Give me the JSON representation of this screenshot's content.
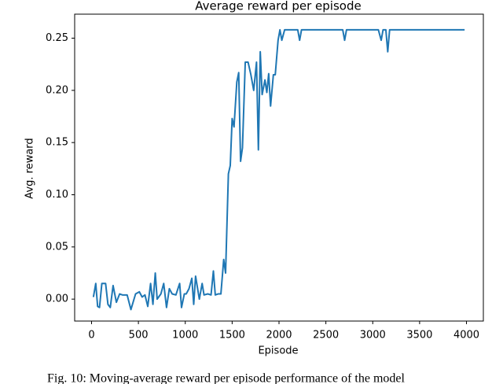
{
  "chart_data": {
    "type": "line",
    "title": "Average reward per episode",
    "xlabel": "Episode",
    "ylabel": "Avg. reward",
    "caption": "Fig. 10: Moving-average reward per episode performance of the model",
    "xlim": [
      -180,
      4180
    ],
    "ylim": [
      -0.021,
      0.273
    ],
    "xticks": [
      0,
      500,
      1000,
      1500,
      2000,
      2500,
      3000,
      3500,
      4000
    ],
    "yticks": [
      {
        "value": 0,
        "label": "0.00"
      },
      {
        "value": 0.05,
        "label": "0.05"
      },
      {
        "value": 0.1,
        "label": "0.10"
      },
      {
        "value": 0.15,
        "label": "0.15"
      },
      {
        "value": 0.2,
        "label": "0.20"
      },
      {
        "value": 0.25,
        "label": "0.25"
      }
    ],
    "series": [
      {
        "name": "Avg. reward",
        "color": "#1f77b4",
        "x": [
          20,
          45,
          65,
          85,
          110,
          150,
          175,
          200,
          230,
          265,
          300,
          330,
          380,
          420,
          470,
          510,
          540,
          570,
          600,
          630,
          655,
          680,
          700,
          740,
          770,
          800,
          830,
          860,
          900,
          940,
          960,
          990,
          1010,
          1040,
          1070,
          1090,
          1110,
          1150,
          1180,
          1200,
          1240,
          1275,
          1300,
          1320,
          1350,
          1380,
          1410,
          1430,
          1460,
          1480,
          1500,
          1520,
          1550,
          1570,
          1590,
          1610,
          1640,
          1670,
          1700,
          1730,
          1760,
          1780,
          1800,
          1820,
          1850,
          1870,
          1890,
          1910,
          1940,
          1960,
          1990,
          2010,
          2030,
          2060,
          2200,
          2220,
          2240,
          2680,
          2700,
          2720,
          3060,
          3090,
          3110,
          3140,
          3160,
          3180,
          3980
        ],
        "values": [
          0.002,
          0.015,
          -0.007,
          -0.008,
          0.015,
          0.015,
          -0.005,
          -0.008,
          0.013,
          -0.003,
          0.005,
          0.004,
          0.004,
          -0.01,
          0.005,
          0.007,
          0.002,
          0.004,
          -0.007,
          0.015,
          -0.005,
          0.025,
          0.0,
          0.005,
          0.015,
          -0.008,
          0.01,
          0.005,
          0.004,
          0.015,
          -0.008,
          0.005,
          0.005,
          0.01,
          0.02,
          -0.005,
          0.022,
          0.0,
          0.015,
          0.004,
          0.005,
          0.004,
          0.027,
          0.004,
          0.005,
          0.005,
          0.038,
          0.025,
          0.12,
          0.128,
          0.173,
          0.165,
          0.208,
          0.217,
          0.132,
          0.145,
          0.227,
          0.227,
          0.215,
          0.2,
          0.227,
          0.143,
          0.237,
          0.196,
          0.21,
          0.198,
          0.216,
          0.185,
          0.215,
          0.215,
          0.248,
          0.258,
          0.248,
          0.258,
          0.258,
          0.248,
          0.258,
          0.258,
          0.248,
          0.258,
          0.258,
          0.248,
          0.258,
          0.258,
          0.237,
          0.258,
          0.258
        ]
      }
    ]
  }
}
